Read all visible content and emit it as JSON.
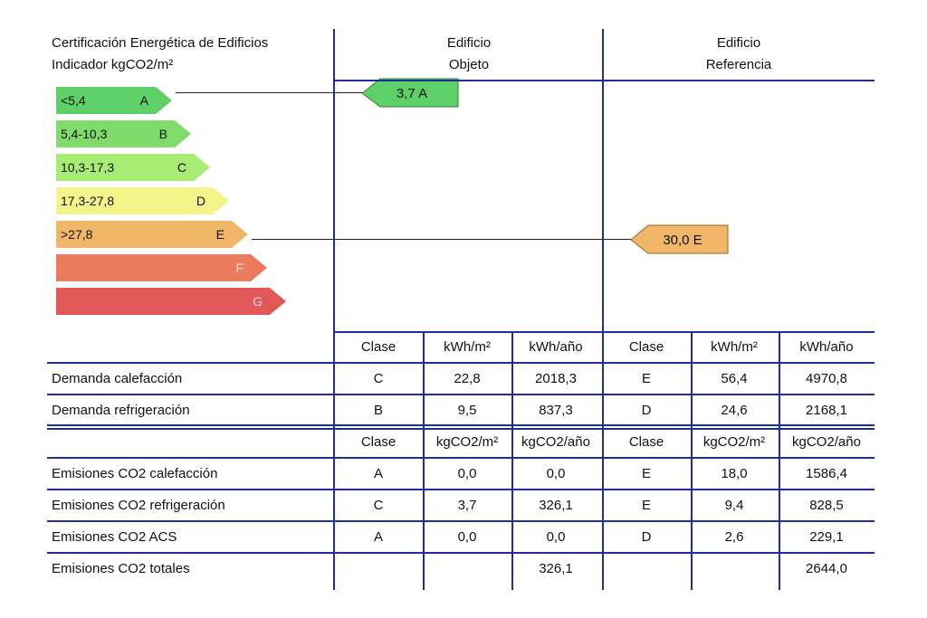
{
  "header": {
    "title_line1": "Certificación Energética de Edificios",
    "title_line2": "Indicador kgCO2/m²",
    "objeto_line1": "Edificio",
    "objeto_line2": "Objeto",
    "referencia_line1": "Edificio",
    "referencia_line2": "Referencia"
  },
  "scale": [
    {
      "range": "<5,4",
      "letter": "A",
      "color": "#5ed068"
    },
    {
      "range": "5,4-10,3",
      "letter": "B",
      "color": "#7fdc6a"
    },
    {
      "range": "10,3-17,3",
      "letter": "C",
      "color": "#a8ec75"
    },
    {
      "range": "17,3-27,8",
      "letter": "D",
      "color": "#f3f58a"
    },
    {
      "range": ">27,8",
      "letter": "E",
      "color": "#f1b768"
    },
    {
      "range": "",
      "letter": "F",
      "color": "#ec7a5c"
    },
    {
      "range": "",
      "letter": "G",
      "color": "#e25858"
    }
  ],
  "indicators": {
    "objeto": {
      "value": "3,7 A",
      "color": "#5ed068"
    },
    "referencia": {
      "value": "30,0 E",
      "color": "#f1b768"
    }
  },
  "demand_header": [
    "Clase",
    "kWh/m²",
    "kWh/año",
    "Clase",
    "kWh/m²",
    "kWh/año"
  ],
  "demand_rows": [
    {
      "label": "Demanda calefacción",
      "cells": [
        "C",
        "22,8",
        "2018,3",
        "E",
        "56,4",
        "4970,8"
      ]
    },
    {
      "label": "Demanda refrigeración",
      "cells": [
        "B",
        "9,5",
        "837,3",
        "D",
        "24,6",
        "2168,1"
      ]
    }
  ],
  "emission_header": [
    "Clase",
    "kgCO2/m²",
    "kgCO2/año",
    "Clase",
    "kgCO2/m²",
    "kgCO2/año"
  ],
  "emission_rows": [
    {
      "label": "Emisiones CO2 calefacción",
      "cells": [
        "A",
        "0,0",
        "0,0",
        "E",
        "18,0",
        "1586,4"
      ]
    },
    {
      "label": "Emisiones CO2 refrigeración",
      "cells": [
        "C",
        "3,7",
        "326,1",
        "E",
        "9,4",
        "828,5"
      ]
    },
    {
      "label": "Emisiones CO2 ACS",
      "cells": [
        "A",
        "0,0",
        "0,0",
        "D",
        "2,6",
        "229,1"
      ]
    },
    {
      "label": "Emisiones CO2 totales",
      "cells": [
        "",
        "",
        "326,1",
        "",
        "",
        "2644,0"
      ]
    }
  ],
  "colors": {
    "grid": "#1f2f9a"
  }
}
